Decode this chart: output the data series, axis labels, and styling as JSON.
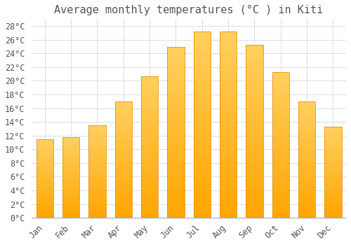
{
  "title": "Average monthly temperatures (°C ) in Kiti",
  "months": [
    "Jan",
    "Feb",
    "Mar",
    "Apr",
    "May",
    "Jun",
    "Jul",
    "Aug",
    "Sep",
    "Oct",
    "Nov",
    "Dec"
  ],
  "values": [
    11.5,
    11.8,
    13.5,
    17.0,
    20.7,
    24.9,
    27.2,
    27.2,
    25.2,
    21.3,
    17.0,
    13.3
  ],
  "bar_color_bottom": "#FFA500",
  "bar_color_top": "#FFD060",
  "bar_edge_color": "#E8920A",
  "background_color": "#FFFFFF",
  "grid_color": "#DDDDDD",
  "text_color": "#555555",
  "ylim": [
    0,
    29
  ],
  "ytick_step": 2,
  "title_fontsize": 11,
  "tick_fontsize": 8.5,
  "font_family": "monospace"
}
